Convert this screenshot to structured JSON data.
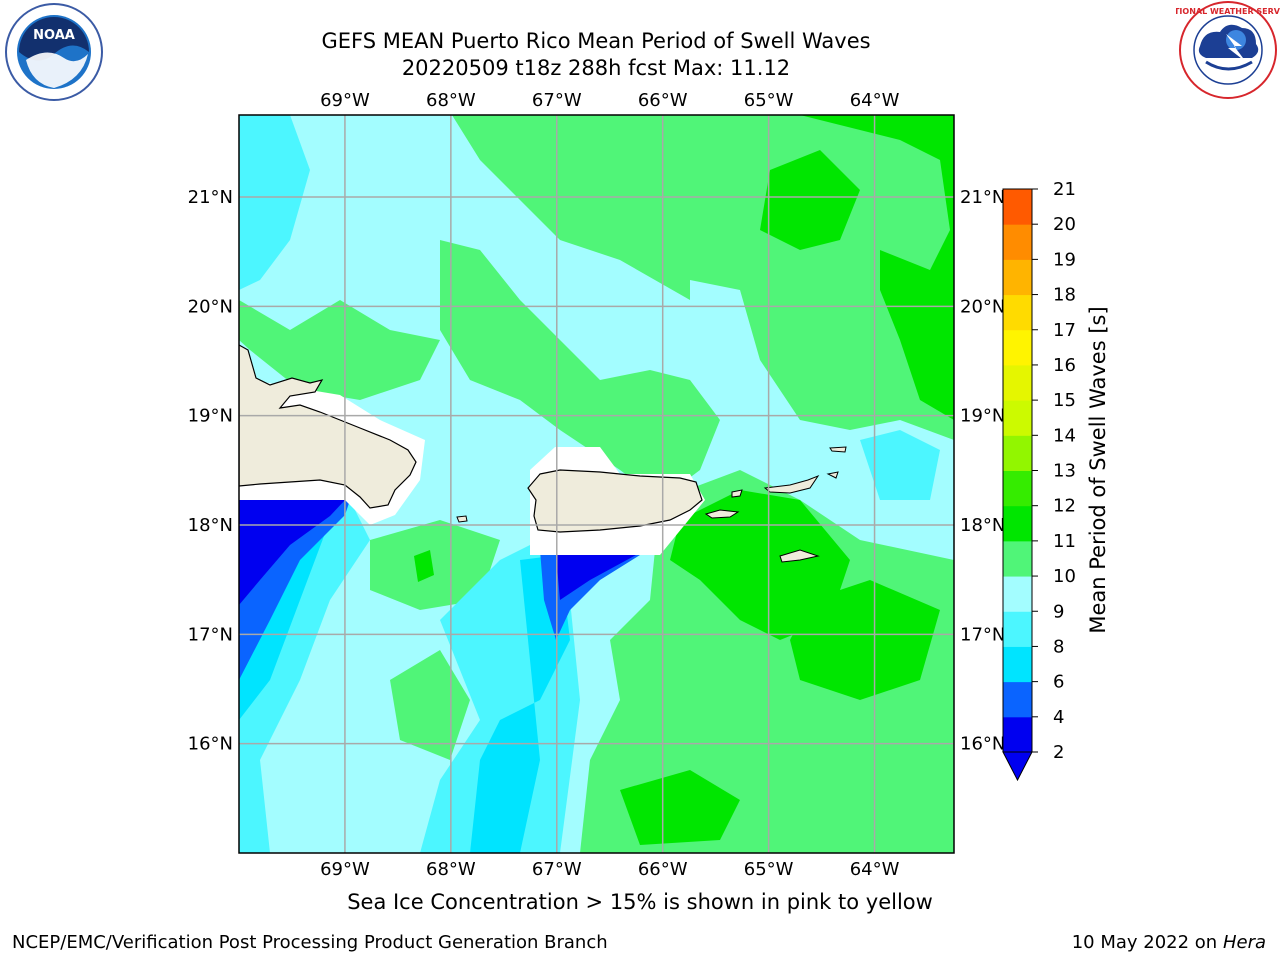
{
  "title": {
    "line1": "GEFS MEAN Puerto Rico Mean Period of Swell Waves",
    "line2": "20220509 t18z 288h fcst   Max: 11.12"
  },
  "map": {
    "lon_ticks": [
      "69°W",
      "68°W",
      "67°W",
      "66°W",
      "65°W",
      "64°W"
    ],
    "lat_ticks": [
      "21°N",
      "20°N",
      "19°N",
      "18°N",
      "17°N",
      "16°N"
    ],
    "lon_values": [
      -69,
      -68,
      -67,
      -66,
      -65,
      -64
    ],
    "lat_values": [
      21,
      20,
      19,
      18,
      17,
      16
    ],
    "lon_range": [
      -70,
      -63.25
    ],
    "lat_range": [
      15,
      21.75
    ],
    "grid": true,
    "land_color": "#efecdc"
  },
  "colorbar": {
    "label": "Mean Period of Swell Waves [s]",
    "ticks": [
      "2",
      "4",
      "6",
      "8",
      "9",
      "10",
      "11",
      "12",
      "13",
      "14",
      "15",
      "16",
      "17",
      "18",
      "19",
      "20",
      "21"
    ],
    "colors": [
      "#0000f0",
      "#0a64ff",
      "#00e4ff",
      "#4cf6ff",
      "#a3fdff",
      "#50f578",
      "#00e600",
      "#35ec00",
      "#92f600",
      "#ccfa00",
      "#e5f600",
      "#fff400",
      "#ffdb00",
      "#ffb400",
      "#ff8c00",
      "#ff5a00",
      "#ff0000"
    ],
    "under_color": "#0000f0",
    "orientation": "vertical",
    "extend": "min"
  },
  "caption": "Sea Ice Concentration > 15% is shown in pink to yellow",
  "footer": {
    "left": "NCEP/EMC/Verification Post Processing Product Generation Branch",
    "right_prefix": "10 May 2022 on",
    "right_machine": "Hera"
  },
  "logos": {
    "left_text": "NOAA",
    "right_text": "NATIONAL WEATHER SERVICE"
  }
}
